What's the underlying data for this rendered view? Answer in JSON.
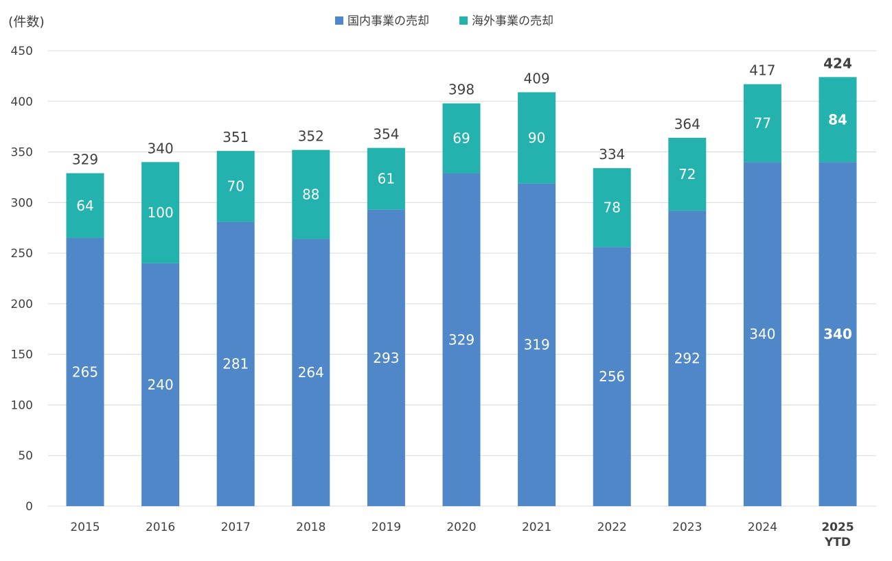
{
  "chart_data": {
    "type": "bar",
    "stacked": true,
    "unit_label": "(件数)",
    "categories": [
      "2015",
      "2016",
      "2017",
      "2018",
      "2019",
      "2020",
      "2021",
      "2022",
      "2023",
      "2024",
      "2025\nYTD"
    ],
    "series": [
      {
        "name": "国内事業の売却",
        "color": "#4f87c8",
        "values": [
          265,
          240,
          281,
          264,
          293,
          329,
          319,
          256,
          292,
          340,
          340
        ]
      },
      {
        "name": "海外事業の売却",
        "color": "#23b2ae",
        "values": [
          64,
          100,
          70,
          88,
          61,
          69,
          90,
          78,
          72,
          77,
          84
        ]
      }
    ],
    "totals": [
      329,
      340,
      351,
      352,
      354,
      398,
      409,
      334,
      364,
      417,
      424
    ],
    "ylim": [
      0,
      450
    ],
    "yticks": [
      0,
      50,
      100,
      150,
      200,
      250,
      300,
      350,
      400,
      450
    ],
    "grid": true,
    "legend_position": "top-center",
    "highlight_last": true
  }
}
